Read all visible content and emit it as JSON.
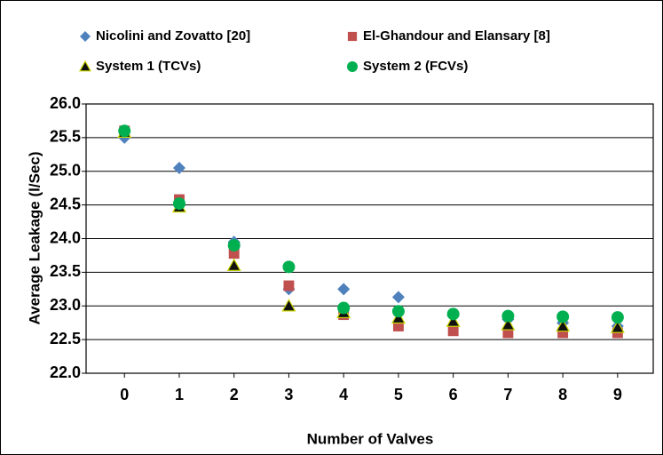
{
  "chart_data": {
    "type": "scatter",
    "x_label": "Number of Valves",
    "y_label": "Average Leakage (l/Sec)",
    "xlim": [
      -0.7,
      9.65
    ],
    "xticks": [
      0,
      1,
      2,
      3,
      4,
      5,
      6,
      7,
      8,
      9
    ],
    "ylim": [
      22,
      26
    ],
    "yticks": [
      {
        "value": 22,
        "label": "22.0"
      },
      22.5,
      {
        "value": 23,
        "label": "23.0"
      },
      23.5,
      {
        "value": 24,
        "label": "24.0"
      },
      24.5,
      {
        "value": 25,
        "label": "25.0"
      },
      25.5,
      {
        "value": 26,
        "label": "26.0"
      }
    ],
    "grid": true,
    "series": [
      {
        "name": "Nicolini and Zovatto [20]",
        "color": "#4f81bd",
        "marker": "diamond",
        "x": [
          0,
          1,
          2,
          3,
          4,
          5,
          6,
          7,
          8,
          9
        ],
        "values": [
          25.5,
          25.05,
          23.95,
          23.25,
          23.25,
          23.13,
          22.85,
          22.8,
          22.75,
          22.7
        ]
      },
      {
        "name": "El-Ghandour and Elansary [8]",
        "color": "#c0504d",
        "marker": "square",
        "x": [
          0,
          1,
          2,
          3,
          4,
          5,
          6,
          7,
          8,
          9
        ],
        "values": [
          25.6,
          24.58,
          23.78,
          23.3,
          22.87,
          22.7,
          22.63,
          22.6,
          22.6,
          22.6
        ]
      },
      {
        "name": "System 1 (TCVs)",
        "color": "#111111",
        "marker": "triangle",
        "x": [
          0,
          1,
          2,
          3,
          4,
          5,
          6,
          7,
          8,
          9
        ],
        "values": [
          25.58,
          24.47,
          23.6,
          23.0,
          22.9,
          22.82,
          22.77,
          22.72,
          22.7,
          22.68
        ]
      },
      {
        "name": "System 2 (FCVs)",
        "color": "#00b050",
        "marker": "circle",
        "x": [
          0,
          1,
          2,
          3,
          4,
          5,
          6,
          7,
          8,
          9
        ],
        "values": [
          25.6,
          24.52,
          23.9,
          23.58,
          22.97,
          22.92,
          22.88,
          22.85,
          22.84,
          22.83
        ]
      }
    ]
  }
}
